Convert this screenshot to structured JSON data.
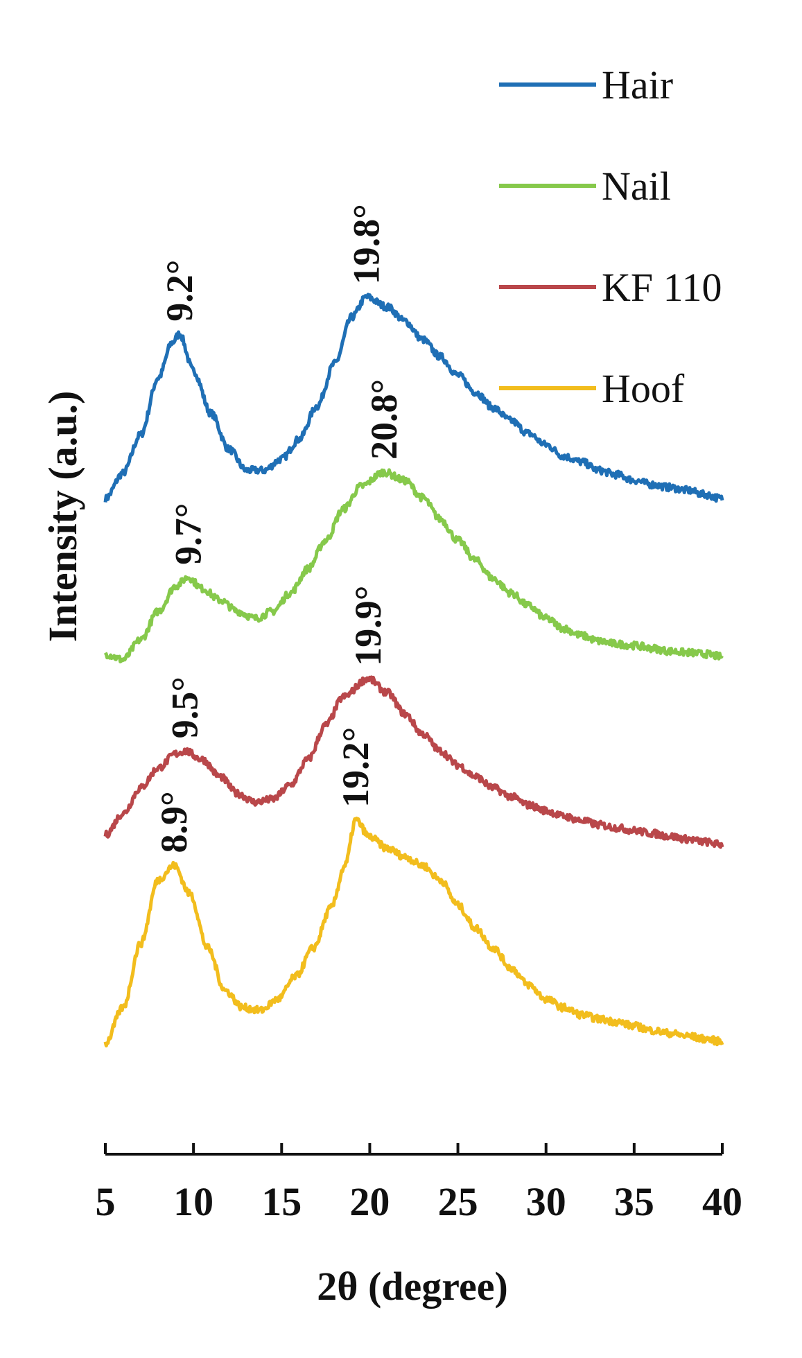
{
  "chart_data": {
    "type": "line",
    "title": "",
    "xlabel": "2θ (degree)",
    "ylabel": "Intensity (a.u.)",
    "xlim": [
      5,
      40
    ],
    "xticks": [
      5,
      10,
      15,
      20,
      25,
      30,
      35,
      40
    ],
    "y_tick_labels_shown": false,
    "grid": false,
    "legend_position": "top-right",
    "stacked_offset": true,
    "series": [
      {
        "name": "Hair",
        "color": "#1f6fb5",
        "baseline": 0.0,
        "points": [
          [
            5,
            0.1
          ],
          [
            6,
            0.28
          ],
          [
            7,
            0.55
          ],
          [
            8,
            0.95
          ],
          [
            8.8,
            1.2
          ],
          [
            9.2,
            1.26
          ],
          [
            10,
            1.0
          ],
          [
            11,
            0.7
          ],
          [
            12,
            0.45
          ],
          [
            13,
            0.3
          ],
          [
            14,
            0.3
          ],
          [
            15,
            0.38
          ],
          [
            16,
            0.52
          ],
          [
            17,
            0.75
          ],
          [
            18,
            1.05
          ],
          [
            19,
            1.38
          ],
          [
            19.8,
            1.52
          ],
          [
            21,
            1.45
          ],
          [
            22,
            1.35
          ],
          [
            23,
            1.22
          ],
          [
            24,
            1.1
          ],
          [
            25,
            0.97
          ],
          [
            26,
            0.85
          ],
          [
            27,
            0.74
          ],
          [
            28,
            0.65
          ],
          [
            29,
            0.56
          ],
          [
            30,
            0.48
          ],
          [
            31,
            0.4
          ],
          [
            32,
            0.36
          ],
          [
            33,
            0.3
          ],
          [
            34,
            0.27
          ],
          [
            35,
            0.23
          ],
          [
            36,
            0.2
          ],
          [
            37,
            0.18
          ],
          [
            38,
            0.16
          ],
          [
            39,
            0.13
          ],
          [
            40,
            0.1
          ]
        ],
        "peak_labels": [
          {
            "x": 9.2,
            "text": "9.2°"
          },
          {
            "x": 19.8,
            "text": "19.8°"
          }
        ]
      },
      {
        "name": "Nail",
        "color": "#86c94b",
        "baseline": 0.0,
        "points": [
          [
            5,
            0.12
          ],
          [
            6,
            0.08
          ],
          [
            7,
            0.22
          ],
          [
            8,
            0.42
          ],
          [
            9,
            0.6
          ],
          [
            9.7,
            0.66
          ],
          [
            10.5,
            0.58
          ],
          [
            11.5,
            0.5
          ],
          [
            12.5,
            0.42
          ],
          [
            13.5,
            0.37
          ],
          [
            14.5,
            0.42
          ],
          [
            15.5,
            0.55
          ],
          [
            16.5,
            0.72
          ],
          [
            17.5,
            0.92
          ],
          [
            18.5,
            1.14
          ],
          [
            19.5,
            1.3
          ],
          [
            20.8,
            1.4
          ],
          [
            22,
            1.34
          ],
          [
            23,
            1.22
          ],
          [
            24,
            1.07
          ],
          [
            25,
            0.92
          ],
          [
            26,
            0.78
          ],
          [
            27,
            0.65
          ],
          [
            28,
            0.55
          ],
          [
            29,
            0.46
          ],
          [
            30,
            0.37
          ],
          [
            31,
            0.3
          ],
          [
            32,
            0.25
          ],
          [
            33,
            0.21
          ],
          [
            34,
            0.19
          ],
          [
            35,
            0.18
          ],
          [
            36,
            0.16
          ],
          [
            37,
            0.14
          ],
          [
            38,
            0.13
          ],
          [
            39,
            0.12
          ],
          [
            40,
            0.1
          ]
        ],
        "peak_labels": [
          {
            "x": 9.7,
            "text": "9.7°"
          },
          {
            "x": 20.8,
            "text": "20.8°"
          }
        ]
      },
      {
        "name": "KF 110",
        "color": "#b9474a",
        "baseline": 0.0,
        "points": [
          [
            5,
            0.15
          ],
          [
            6,
            0.3
          ],
          [
            7,
            0.48
          ],
          [
            8,
            0.62
          ],
          [
            9,
            0.72
          ],
          [
            9.5,
            0.74
          ],
          [
            10.5,
            0.68
          ],
          [
            11.5,
            0.56
          ],
          [
            12.5,
            0.44
          ],
          [
            13.5,
            0.38
          ],
          [
            14.5,
            0.4
          ],
          [
            15.5,
            0.5
          ],
          [
            16.5,
            0.68
          ],
          [
            17.5,
            0.92
          ],
          [
            18.5,
            1.12
          ],
          [
            19.9,
            1.25
          ],
          [
            21,
            1.15
          ],
          [
            22,
            1.0
          ],
          [
            23,
            0.86
          ],
          [
            24,
            0.74
          ],
          [
            25,
            0.64
          ],
          [
            26,
            0.56
          ],
          [
            27,
            0.48
          ],
          [
            28,
            0.42
          ],
          [
            29,
            0.36
          ],
          [
            30,
            0.32
          ],
          [
            31,
            0.28
          ],
          [
            32,
            0.25
          ],
          [
            33,
            0.22
          ],
          [
            34,
            0.2
          ],
          [
            35,
            0.18
          ],
          [
            36,
            0.16
          ],
          [
            37,
            0.14
          ],
          [
            38,
            0.12
          ],
          [
            39,
            0.1
          ],
          [
            40,
            0.08
          ]
        ],
        "peak_labels": [
          {
            "x": 9.5,
            "text": "9.5°"
          },
          {
            "x": 19.9,
            "text": "19.9°"
          }
        ]
      },
      {
        "name": "Hoof",
        "color": "#f2bd1d",
        "baseline": 0.0,
        "points": [
          [
            5,
            0.05
          ],
          [
            6,
            0.3
          ],
          [
            7,
            0.75
          ],
          [
            8,
            1.2
          ],
          [
            8.9,
            1.3
          ],
          [
            9.8,
            1.1
          ],
          [
            10.8,
            0.72
          ],
          [
            11.8,
            0.42
          ],
          [
            12.8,
            0.3
          ],
          [
            13.8,
            0.28
          ],
          [
            14.8,
            0.36
          ],
          [
            15.8,
            0.52
          ],
          [
            16.8,
            0.72
          ],
          [
            17.8,
            1.0
          ],
          [
            18.6,
            1.3
          ],
          [
            19.2,
            1.62
          ],
          [
            20,
            1.5
          ],
          [
            21,
            1.42
          ],
          [
            22,
            1.36
          ],
          [
            23,
            1.3
          ],
          [
            24,
            1.2
          ],
          [
            25,
            1.02
          ],
          [
            26,
            0.86
          ],
          [
            27,
            0.72
          ],
          [
            28,
            0.58
          ],
          [
            29,
            0.46
          ],
          [
            30,
            0.36
          ],
          [
            31,
            0.3
          ],
          [
            32,
            0.25
          ],
          [
            33,
            0.22
          ],
          [
            34,
            0.2
          ],
          [
            35,
            0.17
          ],
          [
            36,
            0.14
          ],
          [
            37,
            0.12
          ],
          [
            38,
            0.1
          ],
          [
            39,
            0.08
          ],
          [
            40,
            0.06
          ]
        ],
        "peak_labels": [
          {
            "x": 8.9,
            "text": "8.9°"
          },
          {
            "x": 19.2,
            "text": "19.2°"
          }
        ]
      }
    ]
  }
}
